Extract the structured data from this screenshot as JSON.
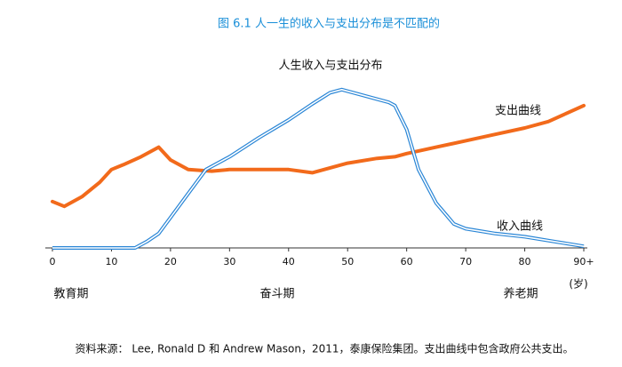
{
  "chart_data": {
    "type": "line",
    "title": "图 6.1 人一生的收入与支出分布是不匹配的",
    "subtitle": "人生收入与支出分布",
    "x_unit": "(岁)",
    "annotations": [
      "教育期",
      "奋斗期",
      "养老期"
    ],
    "source": "资料来源： Lee, Ronald D 和 Andrew Mason，2011，泰康保险集团。支出曲线中包含政府公共支出。",
    "xlim": [
      0,
      90
    ],
    "xticks": [
      0,
      10,
      20,
      30,
      40,
      50,
      60,
      70,
      80,
      {
        "value": 90,
        "label": "90+"
      }
    ],
    "ylim": [
      0,
      100
    ],
    "series": [
      {
        "name": "支出曲线",
        "color": "#f26a1b",
        "line_style": "solid",
        "x": [
          0,
          2,
          5,
          8,
          10,
          12,
          15,
          18,
          20,
          23,
          27,
          30,
          35,
          40,
          44,
          48,
          50,
          55,
          58,
          60,
          65,
          70,
          75,
          80,
          84,
          90
        ],
        "values": [
          29,
          26,
          32,
          41,
          49,
          52,
          57,
          63,
          55,
          49,
          48,
          49,
          49,
          49,
          47,
          51,
          53,
          56,
          57,
          59,
          63,
          67,
          71,
          75,
          79,
          89
        ]
      },
      {
        "name": "收入曲线",
        "color": "#2a86d6",
        "line_style": "double",
        "x": [
          0,
          10,
          14,
          16,
          18,
          20,
          23,
          26,
          30,
          35,
          40,
          44,
          47,
          49,
          52,
          57,
          58,
          60,
          62,
          65,
          68,
          70,
          75,
          80,
          85,
          90
        ],
        "values": [
          0,
          0,
          0,
          4,
          9,
          19,
          34,
          49,
          57,
          69,
          80,
          90,
          97,
          99,
          96,
          91,
          89,
          74,
          49,
          28,
          15,
          12,
          9,
          7,
          4,
          1
        ]
      }
    ]
  }
}
